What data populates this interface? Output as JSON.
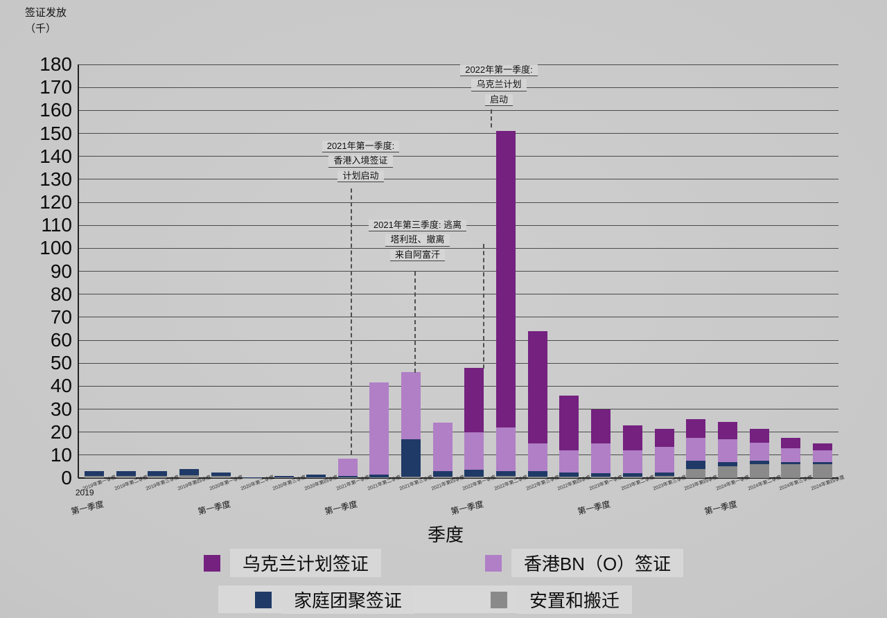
{
  "axes": {
    "y_title_line1": "签证发放",
    "y_title_line2": "（千）",
    "x_title": "季度"
  },
  "chart_data": {
    "type": "bar",
    "stacked": true,
    "title": "",
    "xlabel": "季度",
    "ylabel": "签证发放（千）",
    "ylim": [
      0,
      180
    ],
    "ytick_step": 10,
    "grid": true,
    "legend_position": "bottom",
    "categories": [
      "2019年第一季度",
      "2019年第二季度",
      "2019年第三季度",
      "2019年第四季度",
      "2020年第一季度",
      "2020年第二季度",
      "2020年第三季度",
      "2020年第四季度",
      "2021年第一季度",
      "2021年第二季度",
      "2021年第三季度",
      "2021年第四季度",
      "2022年第一季度",
      "2022年第二季度",
      "2022年第三季度",
      "2022年第四季度",
      "2023年第一季度",
      "2023年第二季度",
      "2023年第三季度",
      "2023年第四季度",
      "2024年第一季度",
      "2024年第二季度",
      "2024年第三季度",
      "2024年第四季度"
    ],
    "series": [
      {
        "key": "resettlement",
        "name": "安置和搬迁",
        "color": "#8a8a8a",
        "values": [
          1,
          1,
          1,
          1.2,
          0.8,
          0.1,
          0.3,
          0.4,
          0.2,
          0.3,
          0.5,
          0.5,
          0.5,
          1,
          0.5,
          0.5,
          0.5,
          0.5,
          1,
          4,
          5,
          6,
          6,
          6
        ]
      },
      {
        "key": "family",
        "name": "家庭团聚签证",
        "color": "#1f3a67",
        "values": [
          2,
          2,
          2,
          2.8,
          1.7,
          0.3,
          0.7,
          1,
          0.8,
          1.2,
          16.5,
          2.5,
          3,
          2,
          2.5,
          2,
          1.5,
          1.5,
          1.5,
          3.5,
          2,
          1.5,
          1,
          1
        ]
      },
      {
        "key": "bno",
        "name": "香港BN（O）签证",
        "color": "#b07fc6",
        "values": [
          0,
          0,
          0,
          0,
          0,
          0,
          0,
          0,
          7.5,
          40,
          29,
          21,
          16.5,
          19,
          12,
          9.5,
          13,
          10,
          11,
          10,
          10,
          8,
          6,
          5
        ]
      },
      {
        "key": "ukraine",
        "name": "乌克兰计划签证",
        "color": "#74217f",
        "values": [
          0,
          0,
          0,
          0,
          0,
          0,
          0,
          0,
          0,
          0,
          0,
          0,
          28,
          129,
          49,
          24,
          15,
          11,
          8,
          8,
          7.5,
          6,
          4.5,
          3
        ]
      }
    ],
    "x_sublabels": [
      {
        "index": 0,
        "label": "第一季度",
        "year": "2019"
      },
      {
        "index": 4,
        "label": "第一季度"
      },
      {
        "index": 8,
        "label": "第一季度"
      },
      {
        "index": 12,
        "label": "第一季度"
      },
      {
        "index": 16,
        "label": "第一季度"
      },
      {
        "index": 20,
        "label": "第一季度"
      }
    ],
    "annotations": [
      {
        "id": "hongkong",
        "lines": [
          "2021年第一季度:",
          "香港入境签证",
          "计划启动"
        ]
      },
      {
        "id": "afghanistan",
        "lines": [
          "2021年第三季度: 逃离",
          "塔利班、撤离",
          "来自阿富汗"
        ]
      },
      {
        "id": "ukraine",
        "lines": [
          "2022年第一季度:",
          "乌克兰计划",
          "启动"
        ]
      }
    ]
  },
  "legend": {
    "rows": [
      [
        {
          "label": "乌克兰计划签证",
          "color": "#74217f"
        },
        {
          "label": "香港BN（O）签证",
          "color": "#b07fc6"
        }
      ],
      [
        {
          "label": "家庭团聚签证",
          "color": "#1f3a67"
        },
        {
          "label": "安置和搬迁",
          "color": "#8a8a8a"
        }
      ]
    ]
  }
}
